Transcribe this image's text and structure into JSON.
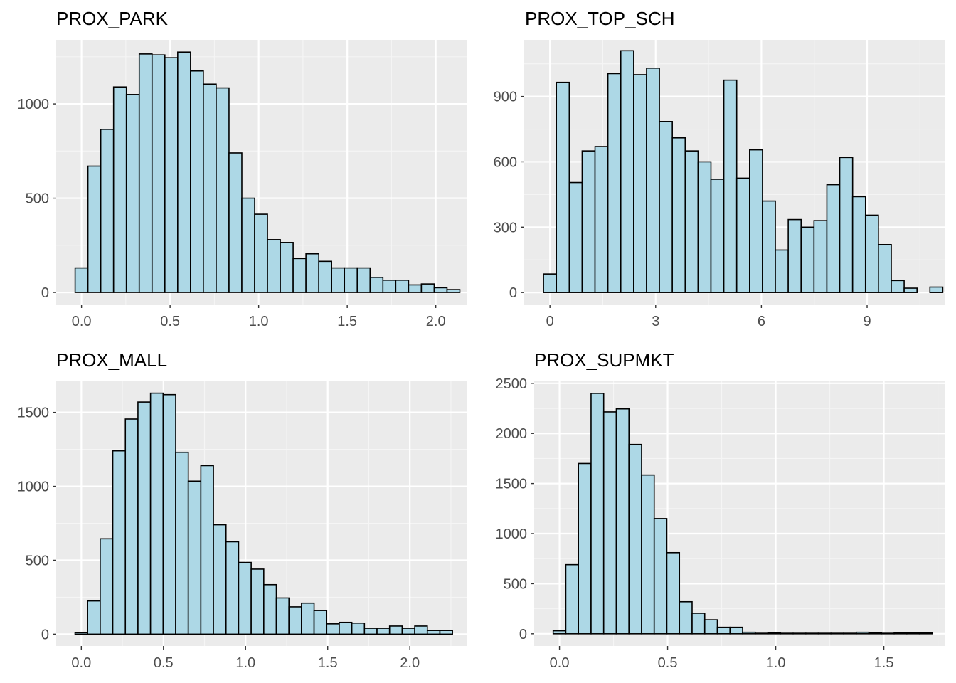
{
  "colors": {
    "panel_background": "#ebebeb",
    "grid_major": "#ffffff",
    "grid_minor": "#f5f5f5",
    "bar_fill": "#add8e6",
    "bar_stroke": "#000000",
    "tick_text": "#4d4d4d",
    "title_text": "#000000"
  },
  "chart_data": [
    {
      "type": "bar",
      "title": "PROX_PARK",
      "xlabel": "",
      "ylabel": "",
      "grid": true,
      "bin_width": 0.0724,
      "bin_start": -0.0362,
      "xlim": [
        -0.143,
        2.178
      ],
      "ylim": [
        -64,
        1340
      ],
      "x_ticks": [
        0.0,
        0.5,
        1.0,
        1.5,
        2.0
      ],
      "x_tick_labels": [
        "0.0",
        "0.5",
        "1.0",
        "1.5",
        "2.0"
      ],
      "y_ticks": [
        0,
        500,
        1000
      ],
      "y_tick_labels": [
        "0",
        "500",
        "1000"
      ],
      "values": [
        130,
        670,
        865,
        1090,
        1050,
        1265,
        1260,
        1245,
        1275,
        1175,
        1105,
        1085,
        740,
        500,
        415,
        280,
        265,
        180,
        205,
        165,
        130,
        130,
        130,
        80,
        65,
        65,
        40,
        45,
        25,
        15
      ]
    },
    {
      "type": "bar",
      "title": "PROX_TOP_SCH",
      "xlabel": "",
      "ylabel": "",
      "grid": true,
      "bin_width": 0.3655,
      "bin_start": -0.1828,
      "xlim": [
        -0.73,
        11.2
      ],
      "ylim": [
        -55,
        1160
      ],
      "x_ticks": [
        0,
        3,
        6,
        9
      ],
      "x_tick_labels": [
        "0",
        "3",
        "6",
        "9"
      ],
      "y_ticks": [
        0,
        300,
        600,
        900
      ],
      "y_tick_labels": [
        "0",
        "300",
        "600",
        "900"
      ],
      "values": [
        85,
        965,
        505,
        650,
        670,
        1005,
        1110,
        1000,
        1030,
        785,
        710,
        650,
        600,
        520,
        975,
        525,
        655,
        420,
        195,
        335,
        300,
        330,
        495,
        620,
        440,
        355,
        220,
        55,
        20,
        0,
        25
      ]
    },
    {
      "type": "bar",
      "title": "PROX_MALL",
      "xlabel": "",
      "ylabel": "",
      "grid": true,
      "bin_width": 0.0766,
      "bin_start": -0.0383,
      "xlim": [
        -0.153,
        2.35
      ],
      "ylim": [
        -80,
        1710
      ],
      "x_ticks": [
        0.0,
        0.5,
        1.0,
        1.5,
        2.0
      ],
      "x_tick_labels": [
        "0.0",
        "0.5",
        "1.0",
        "1.5",
        "2.0"
      ],
      "y_ticks": [
        0,
        500,
        1000,
        1500
      ],
      "y_tick_labels": [
        "0",
        "500",
        "1000",
        "1500"
      ],
      "values": [
        10,
        225,
        645,
        1240,
        1455,
        1570,
        1630,
        1620,
        1230,
        1035,
        1140,
        740,
        625,
        485,
        440,
        335,
        245,
        185,
        210,
        160,
        70,
        80,
        75,
        40,
        40,
        55,
        40,
        55,
        25,
        25
      ]
    },
    {
      "type": "bar",
      "title": "PROX_SUPMKT",
      "xlabel": "",
      "ylabel": "",
      "grid": true,
      "bin_width": 0.0584,
      "bin_start": -0.0292,
      "xlim": [
        -0.117,
        1.781
      ],
      "ylim": [
        -122,
        2520
      ],
      "x_ticks": [
        0.0,
        0.5,
        1.0,
        1.5
      ],
      "x_tick_labels": [
        "0.0",
        "0.5",
        "1.0",
        "1.5"
      ],
      "y_ticks": [
        0,
        500,
        1000,
        1500,
        2000,
        2500
      ],
      "y_tick_labels": [
        "0",
        "500",
        "1000",
        "1500",
        "2000",
        "2500"
      ],
      "values": [
        30,
        690,
        1700,
        2400,
        2215,
        2245,
        1890,
        1585,
        1150,
        810,
        320,
        205,
        140,
        65,
        65,
        15,
        5,
        10,
        5,
        5,
        5,
        5,
        5,
        5,
        15,
        10,
        5,
        10,
        10,
        10
      ]
    }
  ]
}
